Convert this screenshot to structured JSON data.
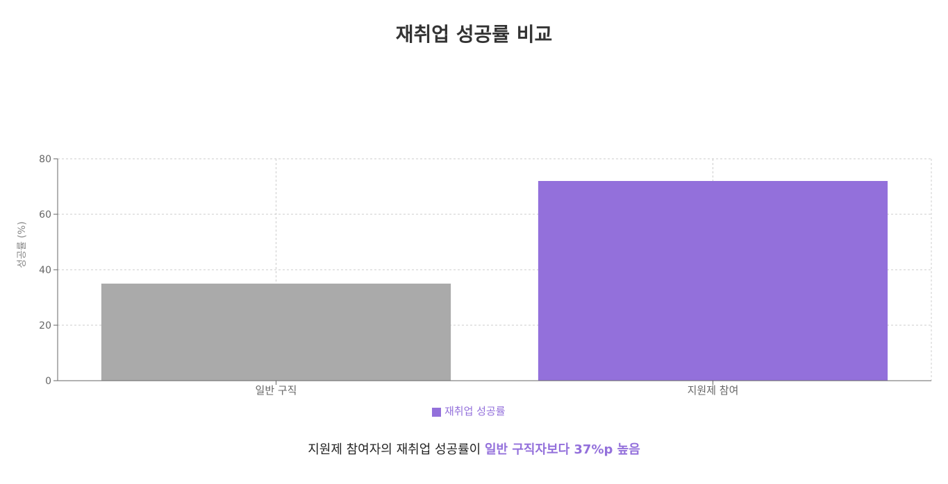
{
  "chart_data": {
    "type": "bar",
    "title": "재취업 성공률 비교",
    "categories": [
      "일반 구직",
      "지원제 참여"
    ],
    "series": [
      {
        "name": "재취업 성공률",
        "values": [
          35,
          72
        ]
      }
    ],
    "bar_colors": [
      "#AAAAAA",
      "#9370DB"
    ],
    "xlabel": "",
    "ylabel": "성공률 (%)",
    "ylim": [
      0,
      80
    ],
    "yticks": [
      0,
      20,
      40,
      60,
      80
    ],
    "grid": true,
    "legend": "bottom-center"
  },
  "summary": {
    "text": "지원제 참여자의 재취업 성공률이 ",
    "highlight": "일반 구직자보다 37%p 높음"
  },
  "colors": {
    "accent": "#9370DB",
    "neutral": "#AAAAAA",
    "axis": "#666666",
    "grid": "#CCCCCC"
  }
}
